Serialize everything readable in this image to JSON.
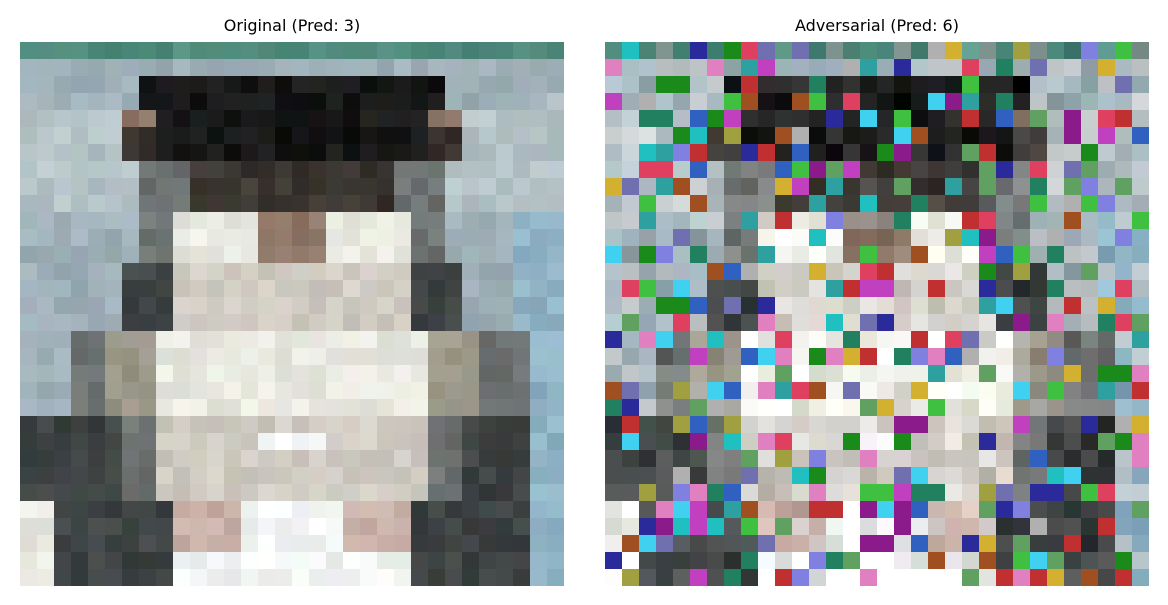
{
  "figure": {
    "panels": [
      {
        "id": "original",
        "title": "Original (Pred: 3)",
        "grid_size": 32,
        "palette": {
          "sky": "#9fb0b8",
          "sky_light": "#b5c3c7",
          "teal": "#4f8a7c",
          "hair_dark": "#161616",
          "hair_mid": "#3a3530",
          "skin": "#8f7868",
          "shirt_light": "#e8e8e0",
          "shirt_mid": "#cfcbc2",
          "shirt_shadow": "#9a9688",
          "coat_dark": "#3f4444",
          "coat_mid": "#6e7372",
          "blue_edge": "#8fb2c4",
          "pink": "#c9b0a8",
          "white": "#f3f6f5"
        }
      },
      {
        "id": "adversarial",
        "title": "Adversarial (Pred: 6)",
        "grid_size": 32,
        "noise_colors": [
          "#8b1a8b",
          "#1a8a1a",
          "#2a2a9a",
          "#c03030",
          "#2ea0a0",
          "#d4b030",
          "#3060c0",
          "#c040c0",
          "#40c040",
          "#a05020",
          "#e080c0",
          "#20c0c0",
          "#8080e0",
          "#60a060",
          "#b0b0b0",
          "#e04060",
          "#7070b0",
          "#208060",
          "#a0a040",
          "#40d0f0"
        ]
      }
    ]
  }
}
